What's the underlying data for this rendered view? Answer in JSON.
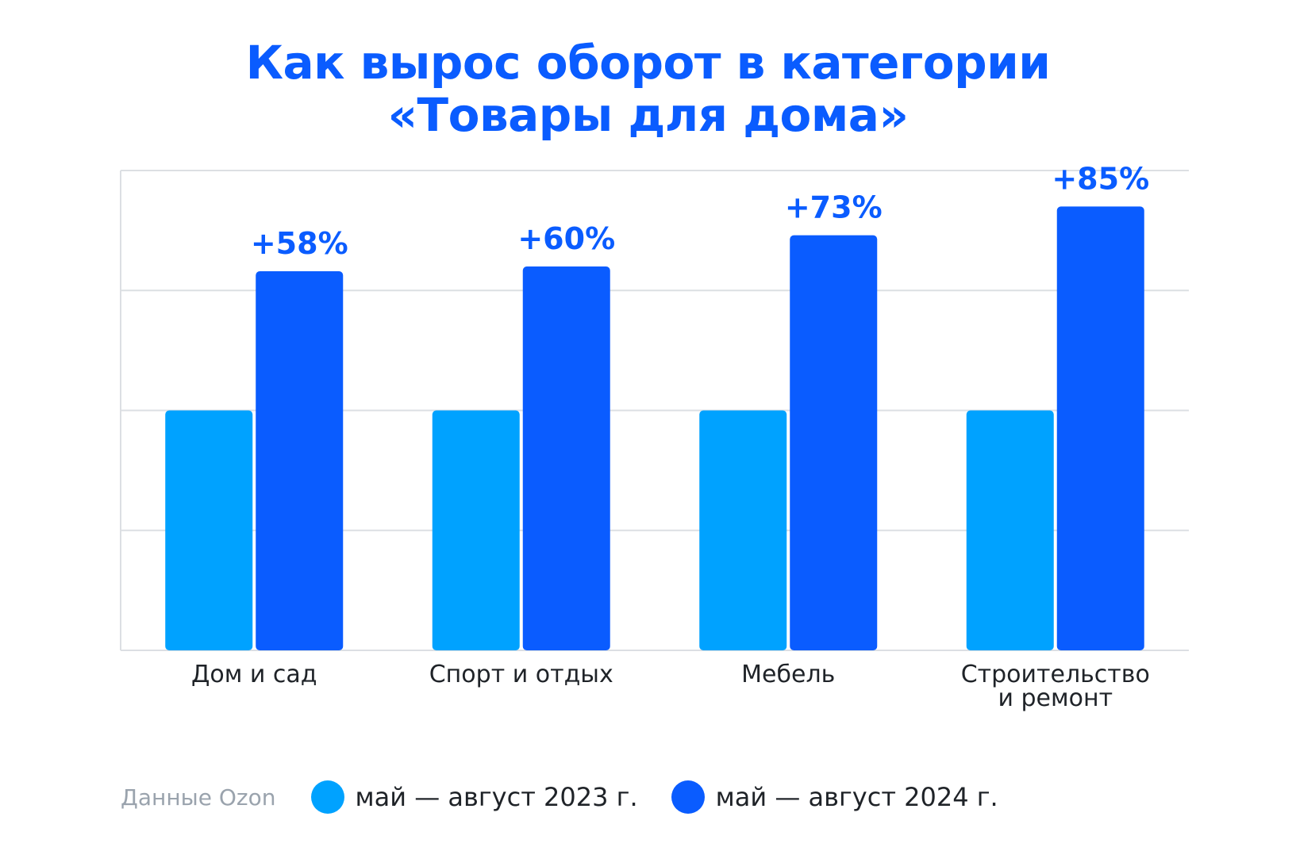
{
  "title_lines": [
    "Как вырос оборот в категории",
    "«Товары для дома»"
  ],
  "source": "Данные Ozon",
  "colors": {
    "series_2023": "#00a2ff",
    "series_2024": "#0a5cff",
    "grid": "#dcdfe3",
    "text": "#1f2328"
  },
  "legend": [
    {
      "label": "май — август 2023 г.",
      "color": "#00a2ff"
    },
    {
      "label": "май — август 2024 г.",
      "color": "#0a5cff"
    }
  ],
  "chart_data": {
    "type": "bar",
    "title": "Как вырос оборот в категории «Товары для дома»",
    "categories": [
      [
        "Дом и сад"
      ],
      [
        "Спорт и отдых"
      ],
      [
        "Мебель"
      ],
      [
        "Строительство",
        "и ремонт"
      ]
    ],
    "series": [
      {
        "name": "май — август 2023 г.",
        "values": [
          100,
          100,
          100,
          100
        ]
      },
      {
        "name": "май — август 2024 г.",
        "values": [
          158,
          160,
          173,
          185
        ]
      }
    ],
    "growth_labels": [
      "+58%",
      "+60%",
      "+73%",
      "+85%"
    ],
    "ylim": [
      0,
      200
    ],
    "grid": true,
    "legend_position": "bottom-left"
  }
}
